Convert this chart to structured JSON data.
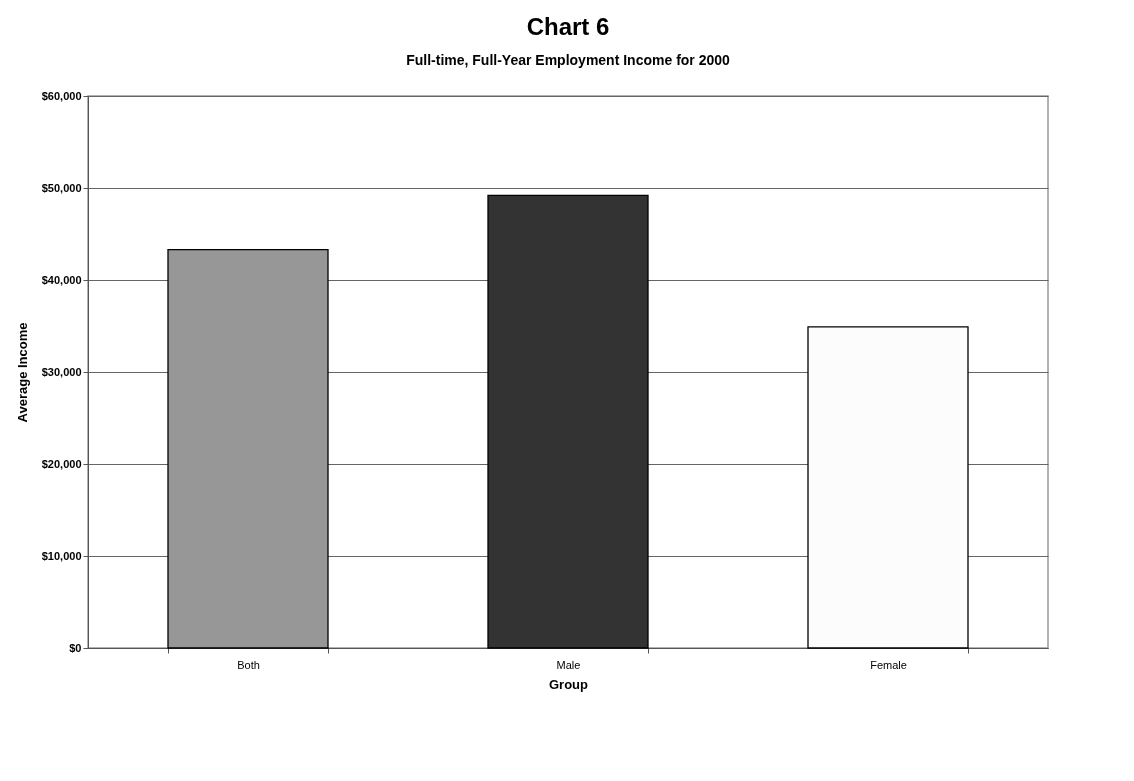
{
  "chart_data": {
    "type": "bar",
    "title": "Chart 6",
    "subtitle": "Full-time, Full-Year Employment Income for 2000",
    "xlabel": "Group",
    "ylabel": "Average Income",
    "categories": [
      "Both",
      "Male",
      "Female"
    ],
    "values": [
      43300,
      49200,
      34900
    ],
    "colors": [
      "#979797",
      "#333333",
      "#fcfcfc"
    ],
    "ylim": [
      0,
      60000
    ],
    "yticks": [
      {
        "value": 0,
        "label": "$0"
      },
      {
        "value": 10000,
        "label": "$10,000"
      },
      {
        "value": 20000,
        "label": "$20,000"
      },
      {
        "value": 30000,
        "label": "$30,000"
      },
      {
        "value": 40000,
        "label": "$40,000"
      },
      {
        "value": 50000,
        "label": "$50,000"
      },
      {
        "value": 60000,
        "label": "$60,000"
      }
    ],
    "grid": "y"
  }
}
